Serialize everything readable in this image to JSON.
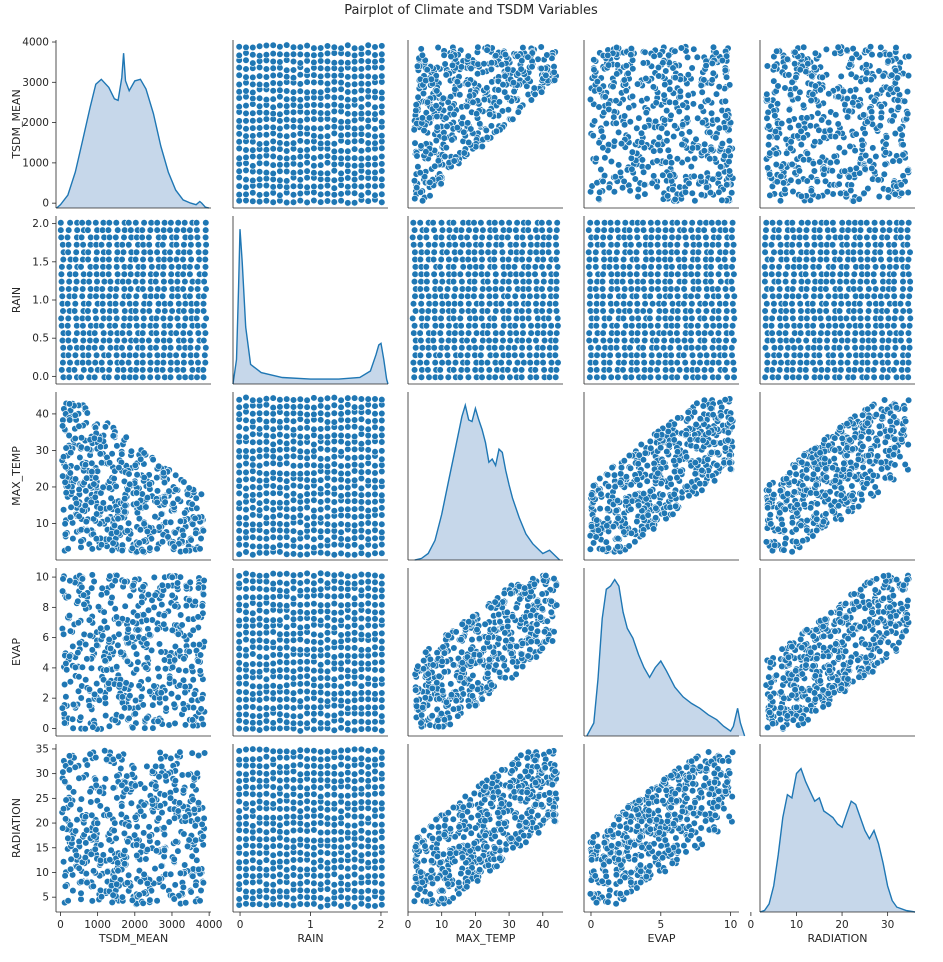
{
  "chart_data": {
    "type": "scatter",
    "title": "Pairplot of Climate and TSDM Variables",
    "diag_kind": "kde",
    "colors": {
      "marker": "#1f77b4",
      "marker_edge": "#ffffff",
      "kde_fill": "#c6d7ea",
      "kde_line": "#1f77b4",
      "axis": "#262626"
    },
    "variables": [
      {
        "name": "TSDM_MEAN",
        "range": [
          -120,
          4050
        ],
        "ticks": [
          0,
          1000,
          2000,
          3000,
          4000
        ],
        "labels": [
          "0",
          "1000",
          "2000",
          "3000",
          "4000"
        ],
        "kde": [
          [
            -100,
            0
          ],
          [
            0,
            0.02
          ],
          [
            200,
            0.08
          ],
          [
            400,
            0.22
          ],
          [
            600,
            0.42
          ],
          [
            800,
            0.62
          ],
          [
            950,
            0.76
          ],
          [
            1100,
            0.79
          ],
          [
            1300,
            0.74
          ],
          [
            1450,
            0.67
          ],
          [
            1550,
            0.66
          ],
          [
            1650,
            0.8
          ],
          [
            1700,
            0.95
          ],
          [
            1750,
            0.78
          ],
          [
            1850,
            0.72
          ],
          [
            2000,
            0.78
          ],
          [
            2150,
            0.79
          ],
          [
            2300,
            0.73
          ],
          [
            2500,
            0.58
          ],
          [
            2700,
            0.38
          ],
          [
            2900,
            0.22
          ],
          [
            3100,
            0.11
          ],
          [
            3300,
            0.05
          ],
          [
            3500,
            0.03
          ],
          [
            3650,
            0.02
          ],
          [
            3750,
            0.04
          ],
          [
            3800,
            0.03
          ],
          [
            3900,
            0.005
          ],
          [
            4000,
            0
          ]
        ]
      },
      {
        "name": "RAIN",
        "range": [
          -0.1,
          2.1
        ],
        "ticks": [
          0.0,
          0.5,
          1.0,
          1.5,
          2.0
        ],
        "labels": [
          "0.0",
          "0.5",
          "1.0",
          "1.5",
          "2.0"
        ],
        "xticks": [
          0,
          1,
          2
        ],
        "xlabels": [
          "0",
          "1",
          "2"
        ],
        "kde": [
          [
            -0.1,
            0
          ],
          [
            -0.05,
            0.15
          ],
          [
            -0.02,
            0.6
          ],
          [
            0.0,
            0.95
          ],
          [
            0.03,
            0.75
          ],
          [
            0.08,
            0.35
          ],
          [
            0.15,
            0.12
          ],
          [
            0.3,
            0.07
          ],
          [
            0.6,
            0.04
          ],
          [
            1.0,
            0.03
          ],
          [
            1.4,
            0.03
          ],
          [
            1.7,
            0.04
          ],
          [
            1.85,
            0.08
          ],
          [
            1.93,
            0.18
          ],
          [
            1.97,
            0.24
          ],
          [
            2.0,
            0.25
          ],
          [
            2.04,
            0.15
          ],
          [
            2.08,
            0.03
          ],
          [
            2.1,
            0
          ]
        ]
      },
      {
        "name": "MAX_TEMP",
        "range": [
          0,
          46
        ],
        "ticks": [
          10,
          20,
          30,
          40
        ],
        "labels": [
          "10",
          "20",
          "30",
          "40"
        ],
        "xticks": [
          0,
          10,
          20,
          30,
          40
        ],
        "xlabels": [
          "0",
          "10",
          "20",
          "30",
          "40"
        ],
        "kde": [
          [
            2,
            0
          ],
          [
            4,
            0.01
          ],
          [
            6,
            0.04
          ],
          [
            8,
            0.12
          ],
          [
            10,
            0.28
          ],
          [
            12,
            0.48
          ],
          [
            14,
            0.68
          ],
          [
            16,
            0.88
          ],
          [
            17,
            0.95
          ],
          [
            18,
            0.86
          ],
          [
            19,
            0.85
          ],
          [
            20,
            0.93
          ],
          [
            21,
            0.86
          ],
          [
            22,
            0.8
          ],
          [
            23,
            0.72
          ],
          [
            24,
            0.6
          ],
          [
            25,
            0.62
          ],
          [
            26,
            0.58
          ],
          [
            27,
            0.68
          ],
          [
            28,
            0.66
          ],
          [
            29,
            0.55
          ],
          [
            30,
            0.46
          ],
          [
            31,
            0.38
          ],
          [
            33,
            0.26
          ],
          [
            35,
            0.16
          ],
          [
            37,
            0.1
          ],
          [
            39,
            0.06
          ],
          [
            40,
            0.04
          ],
          [
            42,
            0.06
          ],
          [
            43,
            0.04
          ],
          [
            45,
            0
          ]
        ]
      },
      {
        "name": "EVAP",
        "range": [
          -0.5,
          10.6
        ],
        "ticks": [
          0,
          2,
          4,
          6,
          8,
          10
        ],
        "labels": [
          "0",
          "2",
          "4",
          "6",
          "8",
          "10"
        ],
        "xticks": [
          0,
          5,
          10
        ],
        "xlabels": [
          "0",
          "5",
          "10"
        ],
        "kde": [
          [
            -0.3,
            0
          ],
          [
            0.2,
            0.08
          ],
          [
            0.5,
            0.35
          ],
          [
            0.8,
            0.72
          ],
          [
            1.1,
            0.9
          ],
          [
            1.4,
            0.92
          ],
          [
            1.7,
            0.96
          ],
          [
            2.0,
            0.92
          ],
          [
            2.3,
            0.76
          ],
          [
            2.6,
            0.66
          ],
          [
            3.0,
            0.6
          ],
          [
            3.4,
            0.5
          ],
          [
            3.8,
            0.42
          ],
          [
            4.2,
            0.36
          ],
          [
            4.6,
            0.42
          ],
          [
            5.0,
            0.46
          ],
          [
            5.4,
            0.4
          ],
          [
            6.0,
            0.3
          ],
          [
            6.6,
            0.24
          ],
          [
            7.2,
            0.2
          ],
          [
            7.8,
            0.17
          ],
          [
            8.4,
            0.13
          ],
          [
            9.0,
            0.1
          ],
          [
            9.5,
            0.06
          ],
          [
            10.0,
            0.03
          ],
          [
            10.2,
            0.06
          ],
          [
            10.5,
            0.17
          ],
          [
            10.7,
            0.08
          ],
          [
            11.0,
            0
          ]
        ]
      },
      {
        "name": "RADIATION",
        "range": [
          2,
          36
        ],
        "ticks": [
          5,
          10,
          15,
          20,
          25,
          30,
          35
        ],
        "labels": [
          "5",
          "10",
          "15",
          "20",
          "25",
          "30",
          "35"
        ],
        "xticks": [
          0,
          10,
          20,
          30
        ],
        "xlabels": [
          "0",
          "10",
          "20",
          "30"
        ],
        "kde": [
          [
            2,
            0
          ],
          [
            3,
            0.01
          ],
          [
            4,
            0.05
          ],
          [
            5,
            0.16
          ],
          [
            6,
            0.35
          ],
          [
            7,
            0.58
          ],
          [
            8,
            0.72
          ],
          [
            9,
            0.7
          ],
          [
            10,
            0.85
          ],
          [
            11,
            0.88
          ],
          [
            12,
            0.8
          ],
          [
            13,
            0.74
          ],
          [
            14,
            0.68
          ],
          [
            15,
            0.7
          ],
          [
            16,
            0.62
          ],
          [
            17,
            0.6
          ],
          [
            18,
            0.58
          ],
          [
            19,
            0.54
          ],
          [
            20,
            0.52
          ],
          [
            21,
            0.6
          ],
          [
            22,
            0.68
          ],
          [
            23,
            0.66
          ],
          [
            24,
            0.58
          ],
          [
            25,
            0.5
          ],
          [
            26,
            0.45
          ],
          [
            27,
            0.5
          ],
          [
            28,
            0.42
          ],
          [
            29,
            0.3
          ],
          [
            30,
            0.16
          ],
          [
            31,
            0.07
          ],
          [
            32,
            0.03
          ],
          [
            34,
            0.01
          ],
          [
            36,
            0
          ]
        ]
      }
    ],
    "panels": {
      "0-1": {
        "kind": "grid"
      },
      "0-2": {
        "kind": "region",
        "shape": "tri_tl"
      },
      "0-3": {
        "kind": "region",
        "shape": "rect"
      },
      "0-4": {
        "kind": "region",
        "shape": "rect"
      },
      "1-0": {
        "kind": "grid"
      },
      "1-2": {
        "kind": "grid"
      },
      "1-3": {
        "kind": "grid"
      },
      "1-4": {
        "kind": "grid"
      },
      "2-0": {
        "kind": "region",
        "shape": "tri_bl"
      },
      "2-1": {
        "kind": "grid"
      },
      "2-3": {
        "kind": "region",
        "shape": "band"
      },
      "2-4": {
        "kind": "region",
        "shape": "band"
      },
      "3-0": {
        "kind": "region",
        "shape": "rect"
      },
      "3-1": {
        "kind": "grid"
      },
      "3-2": {
        "kind": "region",
        "shape": "band"
      },
      "3-4": {
        "kind": "region",
        "shape": "band"
      },
      "4-0": {
        "kind": "region",
        "shape": "rect"
      },
      "4-1": {
        "kind": "grid"
      },
      "4-2": {
        "kind": "region",
        "shape": "band"
      },
      "4-3": {
        "kind": "region",
        "shape": "band"
      }
    }
  }
}
